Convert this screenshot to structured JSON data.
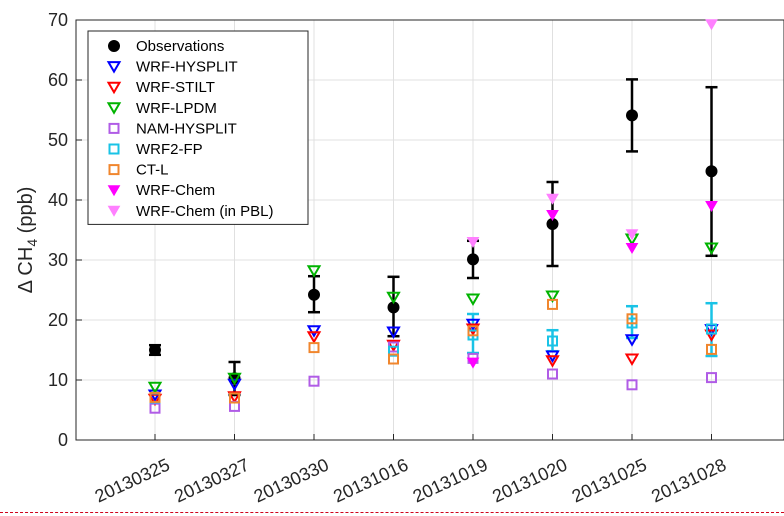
{
  "chart_data": {
    "type": "scatter",
    "title": "",
    "xlabel": "",
    "ylabel_parts": {
      "prefix": "Δ CH",
      "subscript": "4",
      "suffix": " (ppb)"
    },
    "ylim": [
      0,
      70
    ],
    "yticks": [
      0,
      10,
      20,
      30,
      40,
      50,
      60,
      70
    ],
    "categories": [
      "20130325",
      "20130327",
      "20130330",
      "20131016",
      "20131019",
      "20131020",
      "20131025",
      "20131028"
    ],
    "grid": true,
    "legend_position": "top-left",
    "series": [
      {
        "name": "Observations",
        "marker": "filled-circle",
        "color": "#000000",
        "values": [
          15.0,
          10.3,
          24.2,
          22.1,
          30.1,
          36.0,
          54.1,
          44.8
        ],
        "error_low": [
          14.2,
          7.5,
          21.3,
          17.3,
          27.0,
          29.0,
          48.1,
          30.7
        ],
        "error_high": [
          15.8,
          13.0,
          27.3,
          27.2,
          33.2,
          43.0,
          60.1,
          58.8
        ]
      },
      {
        "name": "WRF-HYSPLIT",
        "marker": "triangle-down-open",
        "color": "#0000ff",
        "values": [
          7.5,
          9.3,
          18.2,
          18.0,
          19.3,
          14.0,
          16.7,
          18.4
        ]
      },
      {
        "name": "WRF-STILT",
        "marker": "triangle-down-open",
        "color": "#ff0000",
        "values": [
          6.8,
          7.2,
          17.2,
          15.8,
          18.5,
          13.2,
          13.5,
          17.5
        ]
      },
      {
        "name": "WRF-LPDM",
        "marker": "triangle-down-open",
        "color": "#00b300",
        "values": [
          8.8,
          10.3,
          28.2,
          23.8,
          23.5,
          24.0,
          33.5,
          32.0
        ]
      },
      {
        "name": "NAM-HYSPLIT",
        "marker": "square-open",
        "color": "#b05ce6",
        "values": [
          5.3,
          5.6,
          9.8,
          15.5,
          13.6,
          11.0,
          9.2,
          10.4
        ]
      },
      {
        "name": "WRF2-FP",
        "marker": "square-open",
        "color": "#19c3e6",
        "values": [
          7.0,
          7.0,
          null,
          14.8,
          17.5,
          16.5,
          19.5,
          18.5
        ],
        "error_low": [
          null,
          null,
          null,
          null,
          14.5,
          14.8,
          17.0,
          14.0
        ],
        "error_high": [
          null,
          null,
          null,
          null,
          21.0,
          18.3,
          22.3,
          22.8
        ]
      },
      {
        "name": "CT-L",
        "marker": "square-open",
        "color": "#f0862d",
        "values": [
          7.1,
          7.0,
          15.4,
          13.5,
          18.2,
          22.6,
          20.2,
          15.1
        ]
      },
      {
        "name": "WRF-Chem",
        "marker": "triangle-down-filled",
        "color": "#ff00ff",
        "values": [
          null,
          null,
          null,
          null,
          12.9,
          37.5,
          32.0,
          39.0
        ]
      },
      {
        "name": "WRF-Chem (in PBL)",
        "marker": "triangle-down-filled",
        "color": "#ff80ff",
        "values": [
          null,
          null,
          null,
          null,
          33.0,
          40.2,
          34.3,
          69.3
        ]
      }
    ]
  }
}
